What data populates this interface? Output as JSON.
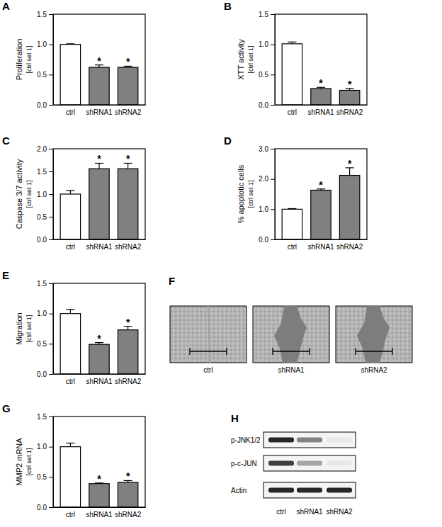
{
  "chart_data": [
    {
      "type": "bar",
      "panel": "A",
      "y_label": "Proliferation",
      "y_label_sub": "[ctrl set 1]",
      "categories": [
        "ctrl",
        "shRNA1",
        "shRNA2"
      ],
      "values": [
        1.0,
        0.62,
        0.62
      ],
      "errors": [
        0.01,
        0.04,
        0.02
      ],
      "colors": [
        "#ffffff",
        "#808080",
        "#808080"
      ],
      "ylim": [
        0,
        1.5
      ],
      "yticks": [
        {
          "value": 0,
          "label": "0.0"
        },
        0.5,
        {
          "value": 1,
          "label": "1.0"
        },
        1.5
      ],
      "annotations": [
        {
          "x": "shRNA1",
          "text": "*"
        },
        {
          "x": "shRNA2",
          "text": "*"
        }
      ]
    },
    {
      "type": "bar",
      "panel": "B",
      "y_label": "XTT activity",
      "y_label_sub": "[ctrl set 1]",
      "categories": [
        "ctrl",
        "shRNA1",
        "shRNA2"
      ],
      "values": [
        1.01,
        0.27,
        0.24
      ],
      "errors": [
        0.03,
        0.02,
        0.03
      ],
      "colors": [
        "#ffffff",
        "#808080",
        "#808080"
      ],
      "ylim": [
        0,
        1.5
      ],
      "yticks": [
        {
          "value": 0,
          "label": "0.0"
        },
        0.5,
        {
          "value": 1,
          "label": "1.0"
        },
        1.5
      ],
      "annotations": [
        {
          "x": "shRNA1",
          "text": "*"
        },
        {
          "x": "shRNA2",
          "text": "*"
        }
      ]
    },
    {
      "type": "bar",
      "panel": "C",
      "y_label": "Caspase 3/7 activity",
      "y_label_sub": "[ctrl set 1]",
      "categories": [
        "ctrl",
        "shRNA1",
        "shRNA2"
      ],
      "values": [
        1.0,
        1.56,
        1.56
      ],
      "errors": [
        0.08,
        0.12,
        0.12
      ],
      "colors": [
        "#ffffff",
        "#808080",
        "#808080"
      ],
      "ylim": [
        0,
        2
      ],
      "yticks": [
        {
          "value": 0,
          "label": "0.0"
        },
        0.5,
        {
          "value": 1,
          "label": "1.0"
        },
        1.5,
        {
          "value": 2,
          "label": "2.0"
        }
      ],
      "annotations": [
        {
          "x": "shRNA1",
          "text": "*"
        },
        {
          "x": "shRNA2",
          "text": "*"
        }
      ]
    },
    {
      "type": "bar",
      "panel": "D",
      "y_label": "% apoptotic cells",
      "y_label_sub": "[ctrl set 1]",
      "categories": [
        "ctrl",
        "shRNA1",
        "shRNA2"
      ],
      "values": [
        1.0,
        1.63,
        2.12
      ],
      "errors": [
        0.02,
        0.04,
        0.25
      ],
      "colors": [
        "#ffffff",
        "#808080",
        "#808080"
      ],
      "ylim": [
        0,
        3
      ],
      "yticks": [
        {
          "value": 0,
          "label": "0.0"
        },
        {
          "value": 1,
          "label": "1.0"
        },
        {
          "value": 2,
          "label": "2.0"
        },
        {
          "value": 3,
          "label": "3.0"
        }
      ],
      "annotations": [
        {
          "x": "shRNA1",
          "text": "*"
        },
        {
          "x": "shRNA2",
          "text": "*"
        }
      ]
    },
    {
      "type": "bar",
      "panel": "E",
      "y_label": "Migration",
      "y_label_sub": "[ctrl set 1]",
      "categories": [
        "ctrl",
        "shRNA1",
        "shRNA2"
      ],
      "values": [
        1.0,
        0.49,
        0.73
      ],
      "errors": [
        0.07,
        0.03,
        0.06
      ],
      "colors": [
        "#ffffff",
        "#808080",
        "#808080"
      ],
      "ylim": [
        0,
        1.5
      ],
      "yticks": [
        {
          "value": 0,
          "label": "0.0"
        },
        0.5,
        {
          "value": 1,
          "label": "1.0"
        },
        1.5
      ],
      "annotations": [
        {
          "x": "shRNA1",
          "text": "*"
        },
        {
          "x": "shRNA2",
          "text": "*"
        }
      ]
    },
    {
      "type": "bar",
      "panel": "G",
      "y_label": "MMP2 mRNA",
      "y_label_sub": "[ctrl set 1]",
      "categories": [
        "ctrl",
        "shRNA1",
        "shRNA2"
      ],
      "values": [
        1.0,
        0.39,
        0.41
      ],
      "errors": [
        0.06,
        0.01,
        0.03
      ],
      "colors": [
        "#ffffff",
        "#808080",
        "#808080"
      ],
      "ylim": [
        0,
        1.5
      ],
      "yticks": [
        {
          "value": 0,
          "label": "0.0"
        },
        0.5,
        {
          "value": 1,
          "label": "1.0"
        },
        1.5
      ],
      "annotations": [
        {
          "x": "shRNA1",
          "text": "*"
        },
        {
          "x": "shRNA2",
          "text": "*"
        }
      ]
    }
  ],
  "wound_healing": {
    "panel": "F",
    "labels": [
      "ctrl",
      "shRNA1",
      "shRNA2"
    ],
    "wound_open": [
      false,
      true,
      true
    ]
  },
  "western_blot": {
    "panel": "H",
    "rows": [
      "p-JNK1/2",
      "p-c-JUN",
      "Actin"
    ],
    "lanes": [
      "ctrl",
      "shRNA1",
      "shRNA2"
    ],
    "intensity": [
      [
        0.9,
        0.5,
        0.05
      ],
      [
        0.8,
        0.35,
        0.05
      ],
      [
        0.9,
        0.9,
        0.9
      ]
    ]
  }
}
